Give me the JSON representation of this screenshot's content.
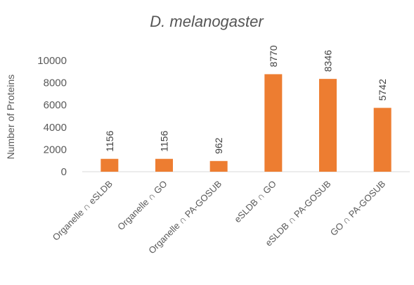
{
  "chart_data": {
    "type": "bar",
    "title": "D. melanogaster",
    "xlabel": "",
    "ylabel": "Number of Proteins",
    "ylim": [
      0,
      10000
    ],
    "yticks": [
      0,
      2000,
      4000,
      6000,
      8000,
      10000
    ],
    "grid": false,
    "legend": "none",
    "categories": [
      "Organelle ∩ eSLDB",
      "Organelle ∩ GO",
      "Organelle ∩ PA-GOSUB",
      "eSLDB ∩ GO",
      "eSLDB ∩ PA-GOSUB",
      "GO ∩ PA-GOSUB"
    ],
    "values": [
      1156,
      1156,
      962,
      8770,
      8346,
      5742
    ],
    "bar_color": "#ed7d31"
  }
}
